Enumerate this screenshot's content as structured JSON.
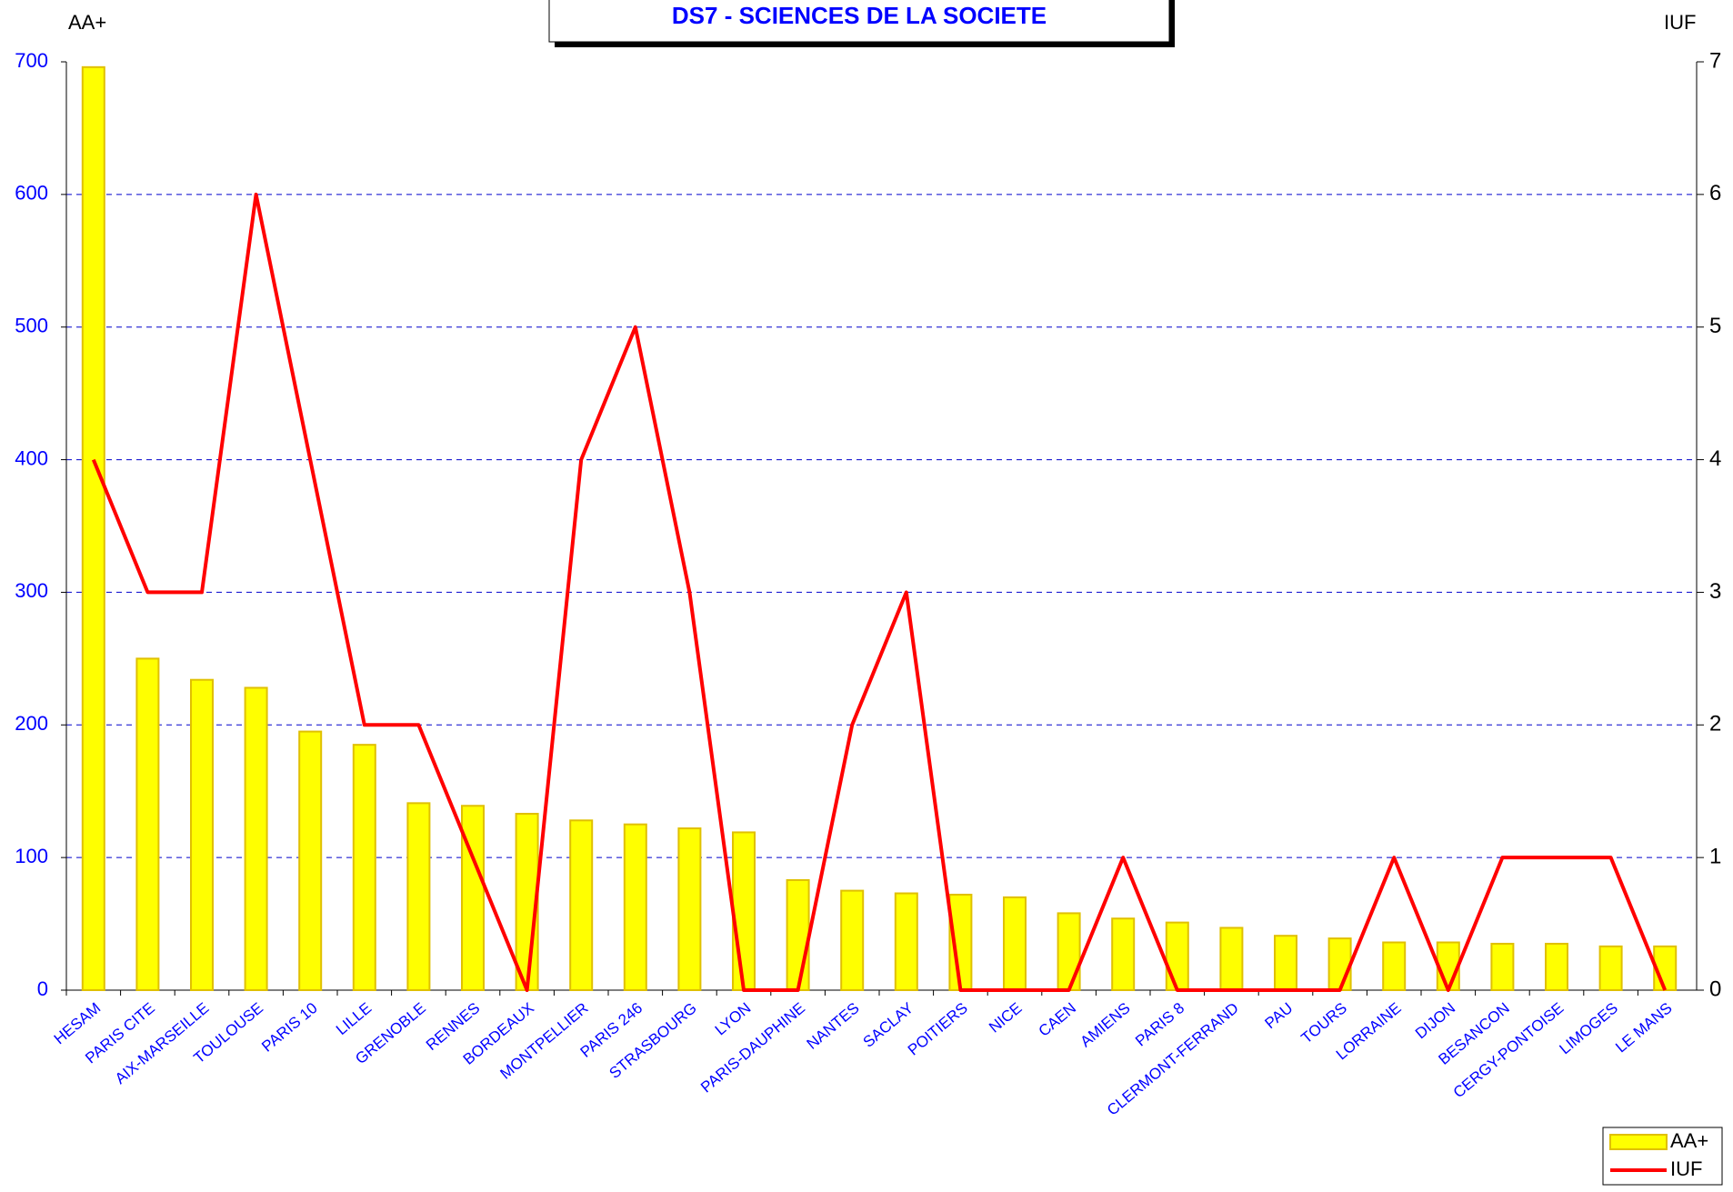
{
  "chart_data": {
    "type": "bar_line",
    "title": "DS7 - SCIENCES DE LA SOCIETE",
    "ylabel": "AA+",
    "y2label": "IUF",
    "categories": [
      "HESAM",
      "PARIS CITE",
      "AIX-MARSEILLE",
      "TOULOUSE",
      "PARIS 10",
      "LILLE",
      "GRENOBLE",
      "RENNES",
      "BORDEAUX",
      "MONTPELLIER",
      "PARIS 246",
      "STRASBOURG",
      "LYON",
      "PARIS-DAUPHINE",
      "NANTES",
      "SACLAY",
      "POITIERS",
      "NICE",
      "CAEN",
      "AMIENS",
      "PARIS 8",
      "CLERMONT-FERRAND",
      "PAU",
      "TOURS",
      "LORRAINE",
      "DIJON",
      "BESANCON",
      "CERGY-PONTOISE",
      "LIMOGES",
      "LE MANS"
    ],
    "series": [
      {
        "name": "AA+",
        "type": "bar",
        "color": "#ffff00",
        "axis": "y",
        "values": [
          696,
          250,
          234,
          228,
          195,
          185,
          141,
          139,
          133,
          128,
          125,
          122,
          119,
          83,
          75,
          73,
          72,
          70,
          58,
          54,
          51,
          47,
          41,
          39,
          36,
          36,
          35,
          35,
          33,
          33
        ]
      },
      {
        "name": "IUF",
        "type": "line",
        "color": "#ff0000",
        "axis": "y2",
        "values": [
          4,
          3,
          3,
          6,
          4,
          2,
          2,
          1,
          0,
          4,
          5,
          3,
          0,
          0,
          2,
          3,
          0,
          0,
          0,
          1,
          0,
          0,
          0,
          0,
          1,
          0,
          1,
          1,
          1,
          0
        ]
      }
    ],
    "ylim": [
      0,
      700
    ],
    "yticks": [
      0,
      100,
      200,
      300,
      400,
      500,
      600,
      700
    ],
    "y2lim": [
      0,
      7
    ],
    "y2ticks": [
      0,
      1,
      2,
      3,
      4,
      5,
      6,
      7
    ],
    "grid": true,
    "legend": "lower right"
  }
}
